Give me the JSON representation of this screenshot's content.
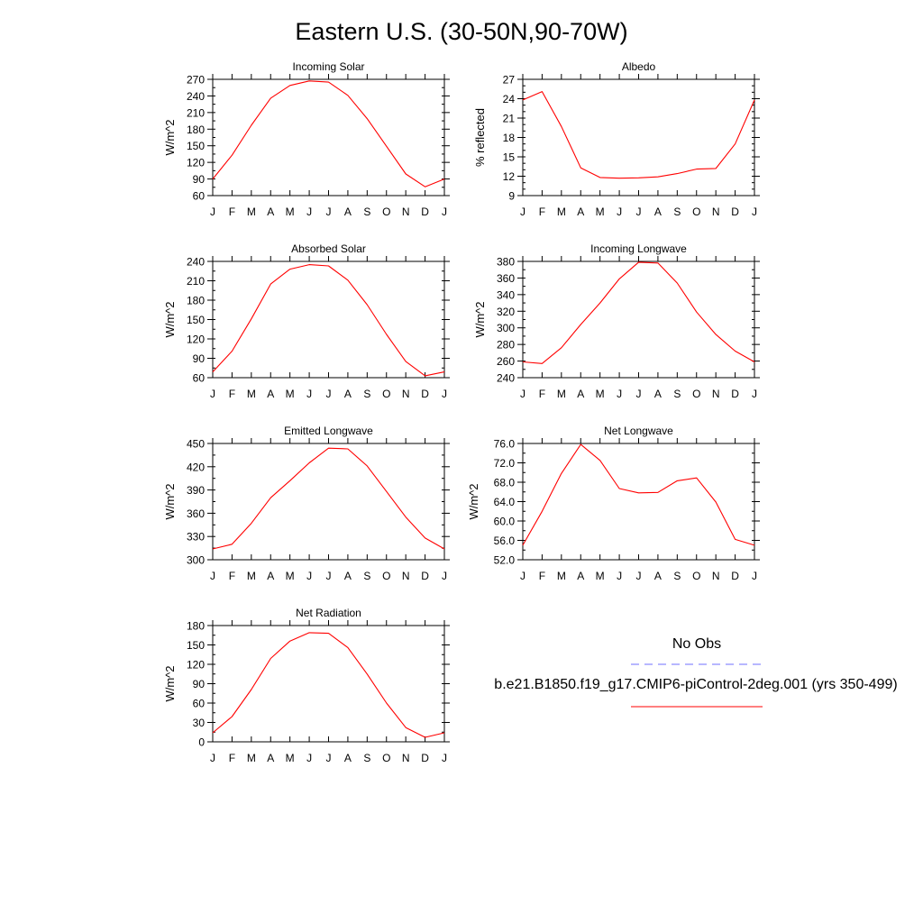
{
  "title": "Eastern U.S. (30-50N,90-70W)",
  "months": [
    "J",
    "F",
    "M",
    "A",
    "M",
    "J",
    "J",
    "A",
    "S",
    "O",
    "N",
    "D",
    "J"
  ],
  "colors": {
    "model_line": "#ff0000",
    "obs_line": "#6f6fff"
  },
  "legend": {
    "obs_label": "No Obs",
    "model_label": "b.e21.B1850.f19_g17.CMIP6-piControl-2deg.001 (yrs 350-499)"
  },
  "chart_data": [
    {
      "type": "line",
      "title": "Incoming Solar",
      "ylabel": "W/m^2",
      "ylim": [
        60,
        270
      ],
      "yticks": [
        60,
        90,
        120,
        150,
        180,
        210,
        240,
        270
      ],
      "ytick_labels": [
        "60",
        "90",
        "120",
        "150",
        "180",
        "210",
        "240",
        "270"
      ],
      "minor_y": 15,
      "series": [
        {
          "values": [
            90,
            133,
            187,
            236,
            259,
            267,
            265,
            241,
            199,
            149,
            99,
            76,
            90
          ]
        }
      ]
    },
    {
      "type": "line",
      "title": "Albedo",
      "ylabel": "% reflected",
      "ylim": [
        9,
        27
      ],
      "yticks": [
        9,
        12,
        15,
        18,
        21,
        24,
        27
      ],
      "ytick_labels": [
        "9",
        "12",
        "15",
        "18",
        "21",
        "24",
        "27"
      ],
      "minor_y": 1,
      "series": [
        {
          "values": [
            23.8,
            25.1,
            19.7,
            13.3,
            11.8,
            11.7,
            11.75,
            11.9,
            12.4,
            13.1,
            13.2,
            17.0,
            23.8
          ]
        }
      ]
    },
    {
      "type": "line",
      "title": "Absorbed Solar",
      "ylabel": "W/m^2",
      "ylim": [
        60,
        240
      ],
      "yticks": [
        60,
        90,
        120,
        150,
        180,
        210,
        240
      ],
      "ytick_labels": [
        "60",
        "90",
        "120",
        "150",
        "180",
        "210",
        "240"
      ],
      "minor_y": 15,
      "series": [
        {
          "values": [
            69,
            101,
            151,
            205,
            228,
            235,
            233,
            211,
            173,
            127,
            85,
            63,
            69
          ]
        }
      ]
    },
    {
      "type": "line",
      "title": "Incoming Longwave",
      "ylabel": "W/m^2",
      "ylim": [
        240,
        380
      ],
      "yticks": [
        240,
        260,
        280,
        300,
        320,
        340,
        360,
        380
      ],
      "ytick_labels": [
        "240",
        "260",
        "280",
        "300",
        "320",
        "340",
        "360",
        "380"
      ],
      "minor_y": 10,
      "series": [
        {
          "values": [
            259,
            257,
            276,
            304,
            330,
            359,
            379,
            378,
            354,
            319,
            292,
            272,
            259
          ]
        }
      ]
    },
    {
      "type": "line",
      "title": "Emitted Longwave",
      "ylabel": "W/m^2",
      "ylim": [
        300,
        450
      ],
      "yticks": [
        300,
        330,
        360,
        390,
        420,
        450
      ],
      "ytick_labels": [
        "300",
        "330",
        "360",
        "390",
        "420",
        "450"
      ],
      "minor_y": 15,
      "series": [
        {
          "values": [
            314,
            320,
            347,
            380,
            402,
            425,
            444,
            443,
            421,
            388,
            355,
            328,
            314
          ]
        }
      ]
    },
    {
      "type": "line",
      "title": "Net Longwave",
      "ylabel": "W/m^2",
      "ylim": [
        52,
        76
      ],
      "yticks": [
        52,
        56,
        60,
        64,
        68,
        72,
        76
      ],
      "ytick_labels": [
        "52.0",
        "56.0",
        "60.0",
        "64.0",
        "68.0",
        "72.0",
        "76.0"
      ],
      "minor_y": 2,
      "series": [
        {
          "values": [
            55.0,
            62.0,
            69.8,
            75.8,
            72.5,
            66.7,
            65.8,
            65.9,
            68.3,
            68.9,
            63.9,
            56.2,
            55.0
          ]
        }
      ]
    },
    {
      "type": "line",
      "title": "Net Radiation",
      "ylabel": "W/m^2",
      "ylim": [
        0,
        180
      ],
      "yticks": [
        0,
        30,
        60,
        90,
        120,
        150,
        180
      ],
      "ytick_labels": [
        "0",
        "30",
        "60",
        "90",
        "120",
        "150",
        "180"
      ],
      "minor_y": 15,
      "series": [
        {
          "values": [
            14,
            39,
            81,
            129,
            156,
            169,
            168,
            146,
            105,
            60,
            22,
            7,
            14
          ]
        }
      ]
    }
  ]
}
